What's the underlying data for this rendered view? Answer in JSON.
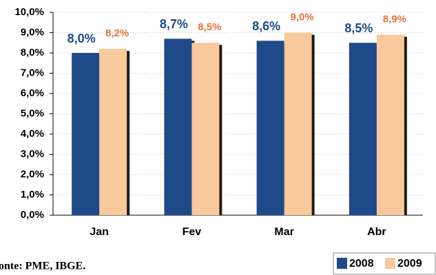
{
  "chart_data": {
    "type": "bar",
    "categories": [
      "Jan",
      "Fev",
      "Mar",
      "Abr"
    ],
    "series": [
      {
        "name": "2008",
        "color": "#1f4a8a",
        "label_color": "#1f4a8a",
        "values": [
          8.0,
          8.7,
          8.6,
          8.5
        ],
        "value_labels": [
          "8,0%",
          "8,7%",
          "8,6%",
          "8,5%"
        ]
      },
      {
        "name": "2009",
        "color": "#f8c99b",
        "label_color": "#e8703a",
        "values": [
          8.2,
          8.5,
          9.0,
          8.9
        ],
        "value_labels": [
          "8,2%",
          "8,5%",
          "9,0%",
          "8,9%"
        ]
      }
    ],
    "ylim": [
      0,
      10
    ],
    "yticks": [
      {
        "value": 0,
        "label": "0,0%"
      },
      {
        "value": 1,
        "label": "1,0%"
      },
      {
        "value": 2,
        "label": "2,0%"
      },
      {
        "value": 3,
        "label": "3,0%"
      },
      {
        "value": 4,
        "label": "4,0%"
      },
      {
        "value": 5,
        "label": "5,0%"
      },
      {
        "value": 6,
        "label": "6,0%"
      },
      {
        "value": 7,
        "label": "7,0%"
      },
      {
        "value": 8,
        "label": "8,0%"
      },
      {
        "value": 9,
        "label": "9,0%"
      },
      {
        "value": 10,
        "label": "10,0%"
      }
    ],
    "grid": true,
    "legend": "bottom-right",
    "source": "onte: PME, IBGE."
  }
}
